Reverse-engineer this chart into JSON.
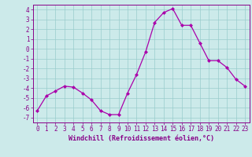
{
  "x": [
    0,
    1,
    2,
    3,
    4,
    5,
    6,
    7,
    8,
    9,
    10,
    11,
    12,
    13,
    14,
    15,
    16,
    17,
    18,
    19,
    20,
    21,
    22,
    23
  ],
  "y": [
    -6.3,
    -4.8,
    -4.3,
    -3.8,
    -3.9,
    -4.5,
    -5.2,
    -6.3,
    -6.7,
    -6.7,
    -4.5,
    -2.6,
    -0.3,
    2.7,
    3.7,
    4.1,
    2.4,
    2.4,
    0.6,
    -1.2,
    -1.2,
    -1.9,
    -3.1,
    -3.8
  ],
  "line_color": "#aa00aa",
  "marker": "D",
  "marker_size": 2.0,
  "bg_color": "#cceaea",
  "grid_color": "#99cccc",
  "xlabel": "Windchill (Refroidissement éolien,°C)",
  "xlim": [
    -0.5,
    23.5
  ],
  "ylim": [
    -7.5,
    4.5
  ],
  "yticks": [
    -7,
    -6,
    -5,
    -4,
    -3,
    -2,
    -1,
    0,
    1,
    2,
    3,
    4
  ],
  "xticks": [
    0,
    1,
    2,
    3,
    4,
    5,
    6,
    7,
    8,
    9,
    10,
    11,
    12,
    13,
    14,
    15,
    16,
    17,
    18,
    19,
    20,
    21,
    22,
    23
  ],
  "tick_color": "#880088",
  "label_fontsize": 5.5,
  "xlabel_fontsize": 6.0,
  "linewidth": 0.9
}
